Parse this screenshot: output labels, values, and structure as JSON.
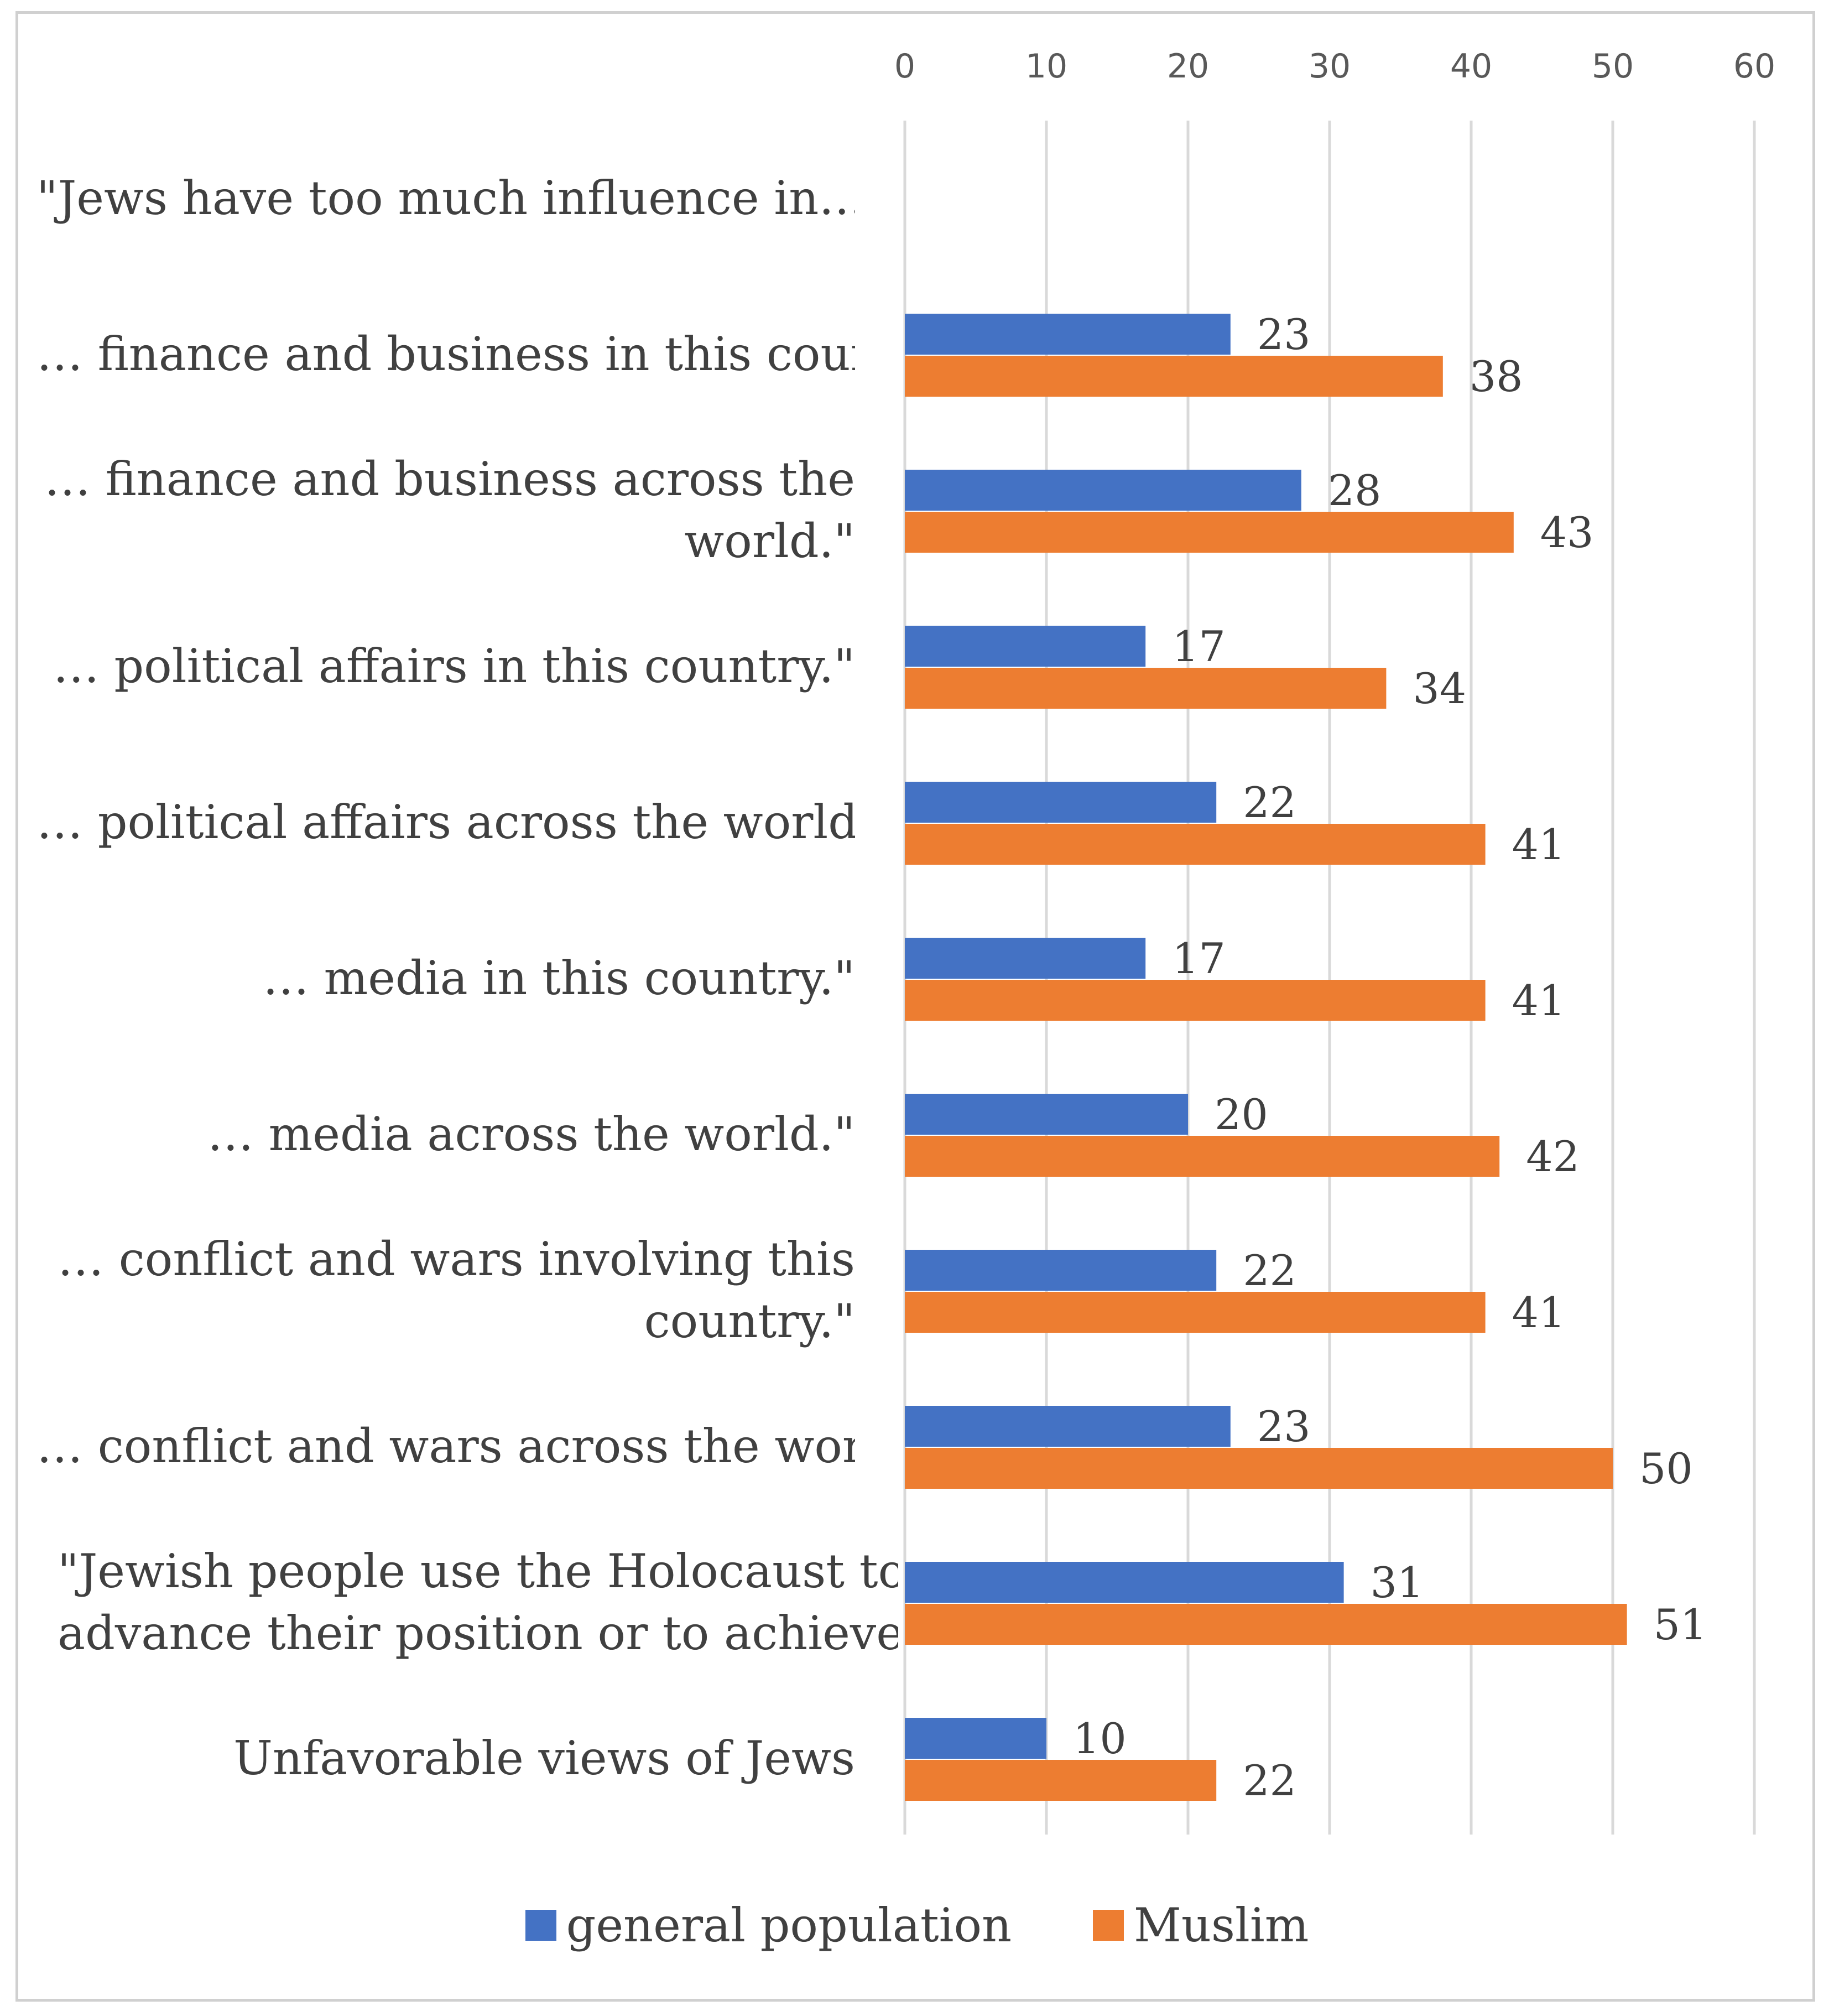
{
  "chart_data": {
    "type": "bar",
    "orientation": "horizontal",
    "categories": [
      "\"Jews have too much influence in…",
      "… finance and business in this country\"",
      "… finance and business across the world.\"",
      "… political affairs in this country.\"",
      "… political affairs across the world.\"",
      "… media in this country.\"",
      "… media across the world.\"",
      "… conflict and wars involving this country.\"",
      "… conflict and wars across the world.\"",
      "\"Jewish people use the Holocaust to advance their position or to achieve…",
      "Unfavorable views of Jews"
    ],
    "category_lines": [
      [
        "\"Jews have too much influence in…"
      ],
      [
        "… finance and business in this country\""
      ],
      [
        "… finance and business across the",
        "world.\""
      ],
      [
        "… political affairs in this country.\""
      ],
      [
        "… political affairs across the world.\""
      ],
      [
        "… media in this country.\""
      ],
      [
        "… media across the world.\""
      ],
      [
        "… conflict and wars involving this",
        "country.\""
      ],
      [
        "… conflict and wars across the world.\""
      ],
      [
        "\"Jewish people use the Holocaust to",
        "advance their position or to achieve…"
      ],
      [
        "Unfavorable views of Jews"
      ]
    ],
    "series": [
      {
        "name": "general population",
        "color": "#4472c4",
        "values": [
          null,
          23,
          28,
          17,
          22,
          17,
          20,
          22,
          23,
          31,
          10
        ]
      },
      {
        "name": "Muslim",
        "color": "#ed7d31",
        "values": [
          null,
          38,
          43,
          34,
          41,
          41,
          42,
          41,
          50,
          51,
          22
        ]
      }
    ],
    "xlim": [
      0,
      60
    ],
    "xticks": [
      "0",
      "10",
      "20",
      "30",
      "40",
      "50",
      "60"
    ],
    "tick_values": [
      0,
      10,
      20,
      30,
      40,
      50,
      60
    ],
    "axis_position": "top",
    "grid": true,
    "legend": "bottom",
    "title": "",
    "xlabel": "",
    "ylabel": ""
  }
}
